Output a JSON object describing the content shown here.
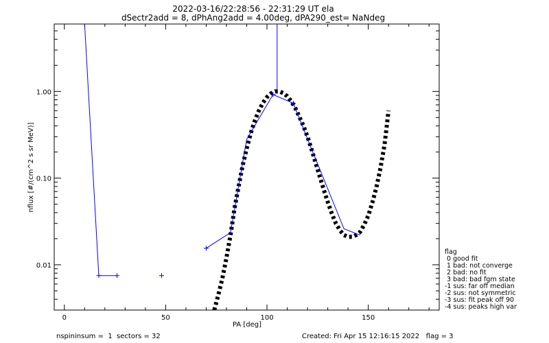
{
  "chart_data": {
    "type": "line",
    "title": "2022-03-16/22:28:56 - 22:31:29 UT ela",
    "subtitle": "dSectr2add = 8, dPhAng2add = 4.00deg, dPA290_est=    NaNdeg",
    "xlabel": "PA [deg]",
    "ylabel": "nflux [#/(cm^2 s sr MeV)]",
    "xlim": [
      -5,
      185
    ],
    "ylim": [
      0.003,
      6.0
    ],
    "yscale": "log",
    "xticks": [
      0,
      50,
      100,
      150
    ],
    "xtick_labels": [
      "0",
      "50",
      "100",
      "150"
    ],
    "yticks": [
      0.01,
      0.1,
      1.0
    ],
    "ytick_labels": [
      "0.01",
      "0.10",
      "1.00"
    ],
    "grid": false,
    "series": [
      {
        "kind": "data",
        "color": "#0000ff",
        "style": "line-with-plus-markers",
        "points": [
          {
            "x": 10,
            "y": 6.0,
            "marker": false
          },
          {
            "x": 17,
            "y": 0.0075,
            "marker": true
          },
          {
            "x": 26,
            "y": 0.0075,
            "marker": true
          },
          {
            "x": 48,
            "y": 0.0075,
            "marker": true,
            "connected": false
          },
          {
            "x": 70,
            "y": 0.0155,
            "marker": true,
            "connected": false
          },
          {
            "x": 82,
            "y": 0.0235,
            "marker": false
          },
          {
            "x": 90,
            "y": 0.28,
            "marker": false
          },
          {
            "x": 103,
            "y": 0.92,
            "marker": true
          },
          {
            "x": 113,
            "y": 0.73,
            "marker": true
          },
          {
            "x": 123,
            "y": 0.19,
            "marker": false
          },
          {
            "x": 138,
            "y": 0.026,
            "marker": false
          },
          {
            "x": 146,
            "y": 0.022,
            "marker": false
          }
        ],
        "spike": {
          "x": 105,
          "y_from": 1.0,
          "y_to": 6.0
        }
      },
      {
        "kind": "fit",
        "color": "#000000",
        "style": "thick-dotted",
        "points": [
          {
            "x": 74,
            "y": 0.003
          },
          {
            "x": 76,
            "y": 0.0045
          },
          {
            "x": 78,
            "y": 0.007
          },
          {
            "x": 80,
            "y": 0.012
          },
          {
            "x": 82,
            "y": 0.022
          },
          {
            "x": 84,
            "y": 0.045
          },
          {
            "x": 86,
            "y": 0.08
          },
          {
            "x": 88,
            "y": 0.14
          },
          {
            "x": 90,
            "y": 0.22
          },
          {
            "x": 92,
            "y": 0.33
          },
          {
            "x": 94,
            "y": 0.46
          },
          {
            "x": 96,
            "y": 0.6
          },
          {
            "x": 98,
            "y": 0.74
          },
          {
            "x": 100,
            "y": 0.86
          },
          {
            "x": 102,
            "y": 0.95
          },
          {
            "x": 104,
            "y": 1.0
          },
          {
            "x": 106,
            "y": 1.0
          },
          {
            "x": 108,
            "y": 0.96
          },
          {
            "x": 110,
            "y": 0.88
          },
          {
            "x": 112,
            "y": 0.77
          },
          {
            "x": 114,
            "y": 0.64
          },
          {
            "x": 116,
            "y": 0.51
          },
          {
            "x": 118,
            "y": 0.4
          },
          {
            "x": 120,
            "y": 0.3
          },
          {
            "x": 122,
            "y": 0.215
          },
          {
            "x": 124,
            "y": 0.15
          },
          {
            "x": 126,
            "y": 0.105
          },
          {
            "x": 128,
            "y": 0.074
          },
          {
            "x": 130,
            "y": 0.053
          },
          {
            "x": 132,
            "y": 0.039
          },
          {
            "x": 134,
            "y": 0.03
          },
          {
            "x": 136,
            "y": 0.025
          },
          {
            "x": 138,
            "y": 0.022
          },
          {
            "x": 140,
            "y": 0.021
          },
          {
            "x": 142,
            "y": 0.021
          },
          {
            "x": 144,
            "y": 0.022
          },
          {
            "x": 146,
            "y": 0.024
          },
          {
            "x": 148,
            "y": 0.029
          },
          {
            "x": 150,
            "y": 0.037
          },
          {
            "x": 152,
            "y": 0.052
          },
          {
            "x": 154,
            "y": 0.078
          },
          {
            "x": 156,
            "y": 0.13
          },
          {
            "x": 158,
            "y": 0.24
          },
          {
            "x": 160,
            "y": 0.6
          }
        ]
      }
    ],
    "legend": {
      "title": "flag",
      "entries": [
        " 0 good fit",
        " 1 bad: not converge",
        " 2 bad: no fit",
        " 3 bad: bad fgm state",
        "-1 sus: far off median",
        "-2 sus: not symmetric",
        "-3 sus: fit peak off 90",
        "-4 sus: peaks high var"
      ]
    },
    "footer": {
      "left": "nspininsum =  1  sectors = 32",
      "right": "Created: Fri Apr 15 12:16:15 2022   flag = 3"
    }
  }
}
